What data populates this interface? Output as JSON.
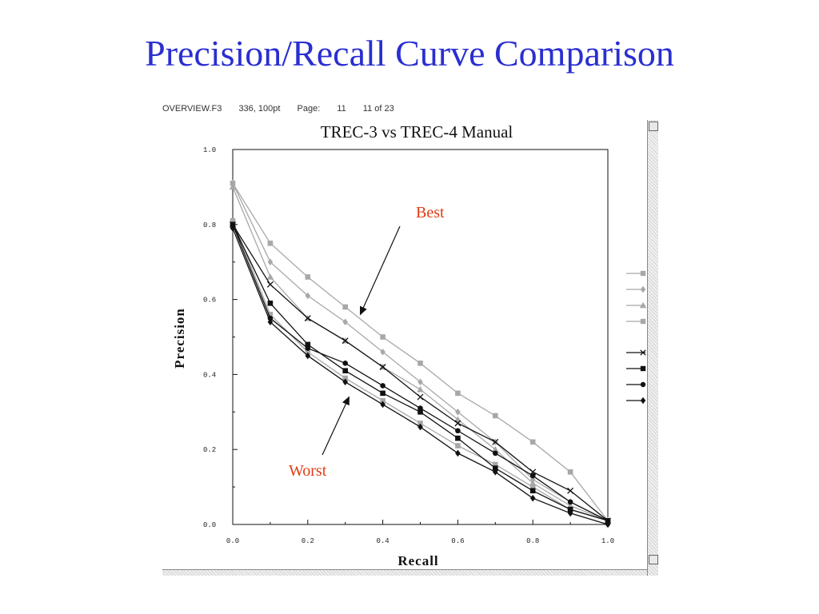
{
  "slide": {
    "title": "Precision/Recall Curve Comparison"
  },
  "window": {
    "header_parts": [
      "OVERVIEW.F3",
      "336, 100pt",
      "Page:",
      "11",
      "11 of 23"
    ]
  },
  "colors": {
    "title": "#2a2fd0",
    "annotation": "#e03c14",
    "gray_series": "#a8a8a8",
    "black_series": "#111111"
  },
  "chart_data": {
    "type": "line",
    "title": "TREC-3 vs TREC-4 Manual",
    "xlabel": "Recall",
    "ylabel": "Precision",
    "xlim": [
      0,
      1
    ],
    "ylim": [
      0,
      1
    ],
    "x": [
      0.0,
      0.1,
      0.2,
      0.3,
      0.4,
      0.5,
      0.6,
      0.7,
      0.8,
      0.9,
      1.0
    ],
    "x_ticks": [
      {
        "value": 0.0,
        "label": "0.0"
      },
      {
        "value": 0.2,
        "label": "0.2"
      },
      {
        "value": 0.4,
        "label": "0.4"
      },
      {
        "value": 0.6,
        "label": "0.6"
      },
      {
        "value": 0.8,
        "label": "0.8"
      },
      {
        "value": 1.0,
        "label": "1.0"
      }
    ],
    "y_ticks": [
      {
        "value": 0.0,
        "label": "0.0"
      },
      {
        "value": 0.2,
        "label": "0.2"
      },
      {
        "value": 0.4,
        "label": "0.4"
      },
      {
        "value": 0.6,
        "label": "0.6"
      },
      {
        "value": 0.8,
        "label": "0.8"
      },
      {
        "value": 1.0,
        "label": "1.0"
      }
    ],
    "grid": false,
    "legend": "right",
    "series": [
      {
        "color": "#a8a8a8",
        "marker": "square",
        "values": [
          0.91,
          0.75,
          0.66,
          0.58,
          0.5,
          0.43,
          0.35,
          0.29,
          0.22,
          0.14,
          0.01
        ]
      },
      {
        "color": "#a8a8a8",
        "marker": "diamond",
        "values": [
          0.91,
          0.7,
          0.61,
          0.54,
          0.46,
          0.38,
          0.3,
          0.22,
          0.12,
          0.06,
          0.01
        ]
      },
      {
        "color": "#a8a8a8",
        "marker": "triangle",
        "values": [
          0.9,
          0.66,
          0.55,
          0.49,
          0.42,
          0.36,
          0.28,
          0.2,
          0.11,
          0.05,
          0.01
        ]
      },
      {
        "color": "#a8a8a8",
        "marker": "square",
        "values": [
          0.81,
          0.56,
          0.46,
          0.39,
          0.33,
          0.27,
          0.21,
          0.16,
          0.1,
          0.04,
          0.01
        ]
      },
      {
        "color": "#111111",
        "marker": "x",
        "values": [
          0.8,
          0.64,
          0.55,
          0.49,
          0.42,
          0.34,
          0.27,
          0.22,
          0.14,
          0.09,
          0.01
        ]
      },
      {
        "color": "#111111",
        "marker": "square",
        "values": [
          0.8,
          0.59,
          0.48,
          0.41,
          0.35,
          0.3,
          0.23,
          0.15,
          0.09,
          0.04,
          0.01
        ]
      },
      {
        "color": "#111111",
        "marker": "circle",
        "values": [
          0.8,
          0.55,
          0.47,
          0.43,
          0.37,
          0.31,
          0.25,
          0.19,
          0.13,
          0.06,
          0.01
        ]
      },
      {
        "color": "#111111",
        "marker": "diamond",
        "values": [
          0.79,
          0.54,
          0.45,
          0.38,
          0.32,
          0.26,
          0.19,
          0.14,
          0.07,
          0.03,
          0.0
        ]
      }
    ],
    "annotations": [
      {
        "text": "Best",
        "target": {
          "x": 0.34,
          "y": 0.56
        }
      },
      {
        "text": "Worst",
        "target": {
          "x": 0.31,
          "y": 0.34
        }
      }
    ]
  }
}
